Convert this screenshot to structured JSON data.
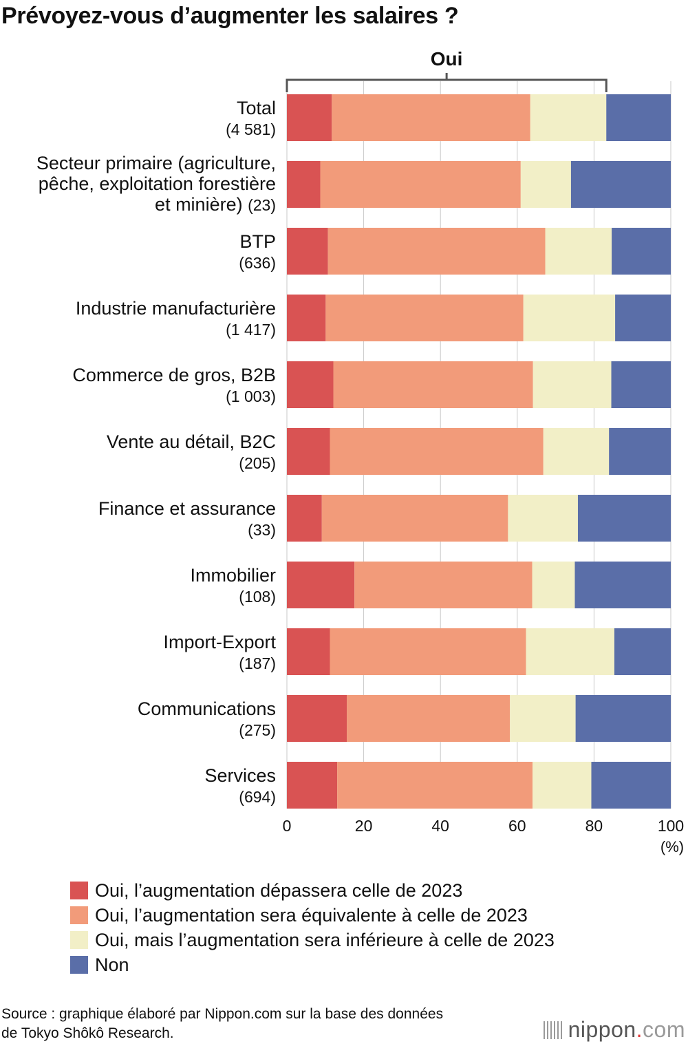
{
  "chart_data": {
    "type": "bar",
    "orientation": "horizontal",
    "stacked": true,
    "title": "Prévoyez-vous d’augmenter les salaires ?",
    "bracket_label": "Oui",
    "unit_label": "(%)",
    "xlim": [
      0,
      100
    ],
    "xticks": [
      "0",
      "20",
      "40",
      "60",
      "80",
      "100"
    ],
    "categories": [
      {
        "lines": [
          "Total"
        ],
        "count": "(4 581)"
      },
      {
        "lines": [
          "Secteur primaire (agriculture,",
          "pêche, exploitation forestière",
          "et minière)"
        ],
        "count": "(23)"
      },
      {
        "lines": [
          "BTP"
        ],
        "count": "(636)"
      },
      {
        "lines": [
          "Industrie manufacturière"
        ],
        "count": "(1 417)"
      },
      {
        "lines": [
          "Commerce de gros, B2B"
        ],
        "count": "(1 003)"
      },
      {
        "lines": [
          "Vente au détail, B2C"
        ],
        "count": "(205)"
      },
      {
        "lines": [
          "Finance et assurance"
        ],
        "count": "(33)"
      },
      {
        "lines": [
          "Immobilier"
        ],
        "count": "(108)"
      },
      {
        "lines": [
          "Import-Export"
        ],
        "count": "(187)"
      },
      {
        "lines": [
          "Communications"
        ],
        "count": "(275)"
      },
      {
        "lines": [
          "Services"
        ],
        "count": "(694)"
      }
    ],
    "series": [
      {
        "name": "Oui, l’augmentation dépassera celle de 2023",
        "color": "#d95353",
        "values": [
          11.7,
          8.7,
          10.7,
          10.1,
          12.1,
          11.2,
          9.1,
          17.6,
          11.2,
          15.6,
          13.1
        ]
      },
      {
        "name": "Oui, l’augmentation sera équivalente à celle de 2023",
        "color": "#f29b7a",
        "values": [
          51.7,
          52.2,
          56.6,
          51.5,
          52.0,
          55.6,
          48.5,
          46.3,
          51.1,
          42.5,
          50.9
        ]
      },
      {
        "name": "Oui, mais l’augmentation sera inférieure à celle de 2023",
        "color": "#f2efc7",
        "values": [
          19.8,
          13.1,
          17.3,
          23.9,
          20.4,
          17.1,
          18.2,
          11.1,
          23.0,
          17.1,
          15.3
        ]
      },
      {
        "name": "Non",
        "color": "#5a6ea8",
        "values": [
          16.8,
          26.0,
          15.4,
          14.5,
          15.5,
          16.1,
          24.2,
          25.0,
          14.7,
          24.8,
          20.7
        ]
      }
    ]
  },
  "legend_items": [
    "Oui, l’augmentation dépassera celle de 2023",
    "Oui, l’augmentation sera équivalente à celle de 2023",
    "Oui, mais l’augmentation sera inférieure à celle de 2023",
    "Non"
  ],
  "colors": {
    "oui_plus": "#d95353",
    "oui_egal": "#f29b7a",
    "oui_moins": "#f2efc7",
    "non": "#5a6ea8"
  },
  "source": {
    "line1": "Source : graphique élaboré par Nippon.com sur la base des données",
    "line2": "de Tokyo Shôkô Research."
  },
  "logo": {
    "name": "nippon",
    "dot": ".",
    "tld": "com"
  }
}
